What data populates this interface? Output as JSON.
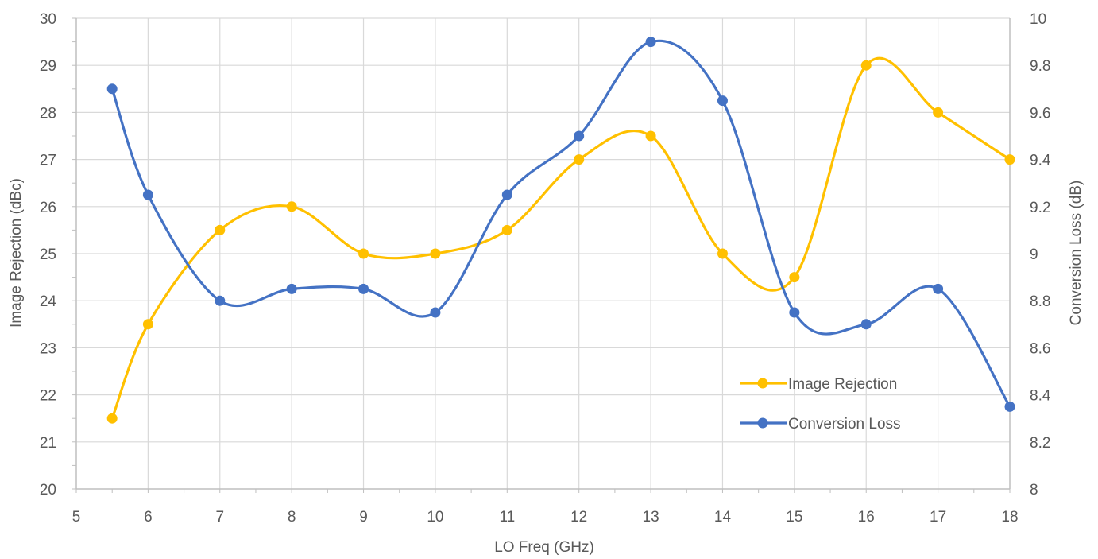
{
  "chart_data": {
    "type": "line",
    "xlabel": "LO Freq (GHz)",
    "ylabel_left": "Image Rejection (dBc)",
    "ylabel_right": "Conversion Loss (dB)",
    "xlim": [
      5,
      18
    ],
    "ylim_left": [
      20,
      30
    ],
    "ylim_right": [
      8,
      10
    ],
    "x_ticks": [
      "5",
      "6",
      "7",
      "8",
      "9",
      "10",
      "11",
      "12",
      "13",
      "14",
      "15",
      "16",
      "17",
      "18"
    ],
    "y_ticks_left": [
      "20",
      "21",
      "22",
      "23",
      "24",
      "25",
      "26",
      "27",
      "28",
      "29",
      "30"
    ],
    "y_ticks_right": [
      "8",
      "8.2",
      "8.4",
      "8.6",
      "8.8",
      "9",
      "9.2",
      "9.4",
      "9.6",
      "9.8",
      "10"
    ],
    "grid": true,
    "smooth": true,
    "legend_position": "lower-right",
    "series": [
      {
        "name": "Image Rejection",
        "axis": "left",
        "color": "#FFC000",
        "x": [
          5.5,
          6,
          7,
          8,
          9,
          10,
          11,
          12,
          13,
          14,
          15,
          16,
          17,
          18
        ],
        "values": [
          21.5,
          23.5,
          25.5,
          26,
          25,
          25,
          25.5,
          27,
          27.5,
          25,
          24.5,
          29,
          28,
          27
        ]
      },
      {
        "name": "Conversion Loss",
        "axis": "right",
        "color": "#4472C4",
        "x": [
          5.5,
          6,
          7,
          8,
          9,
          10,
          11,
          12,
          13,
          14,
          15,
          16,
          17,
          18
        ],
        "values": [
          9.7,
          9.25,
          8.8,
          8.85,
          8.85,
          8.75,
          9.25,
          9.5,
          9.9,
          9.65,
          8.75,
          8.7,
          8.85,
          8.35
        ]
      }
    ]
  }
}
